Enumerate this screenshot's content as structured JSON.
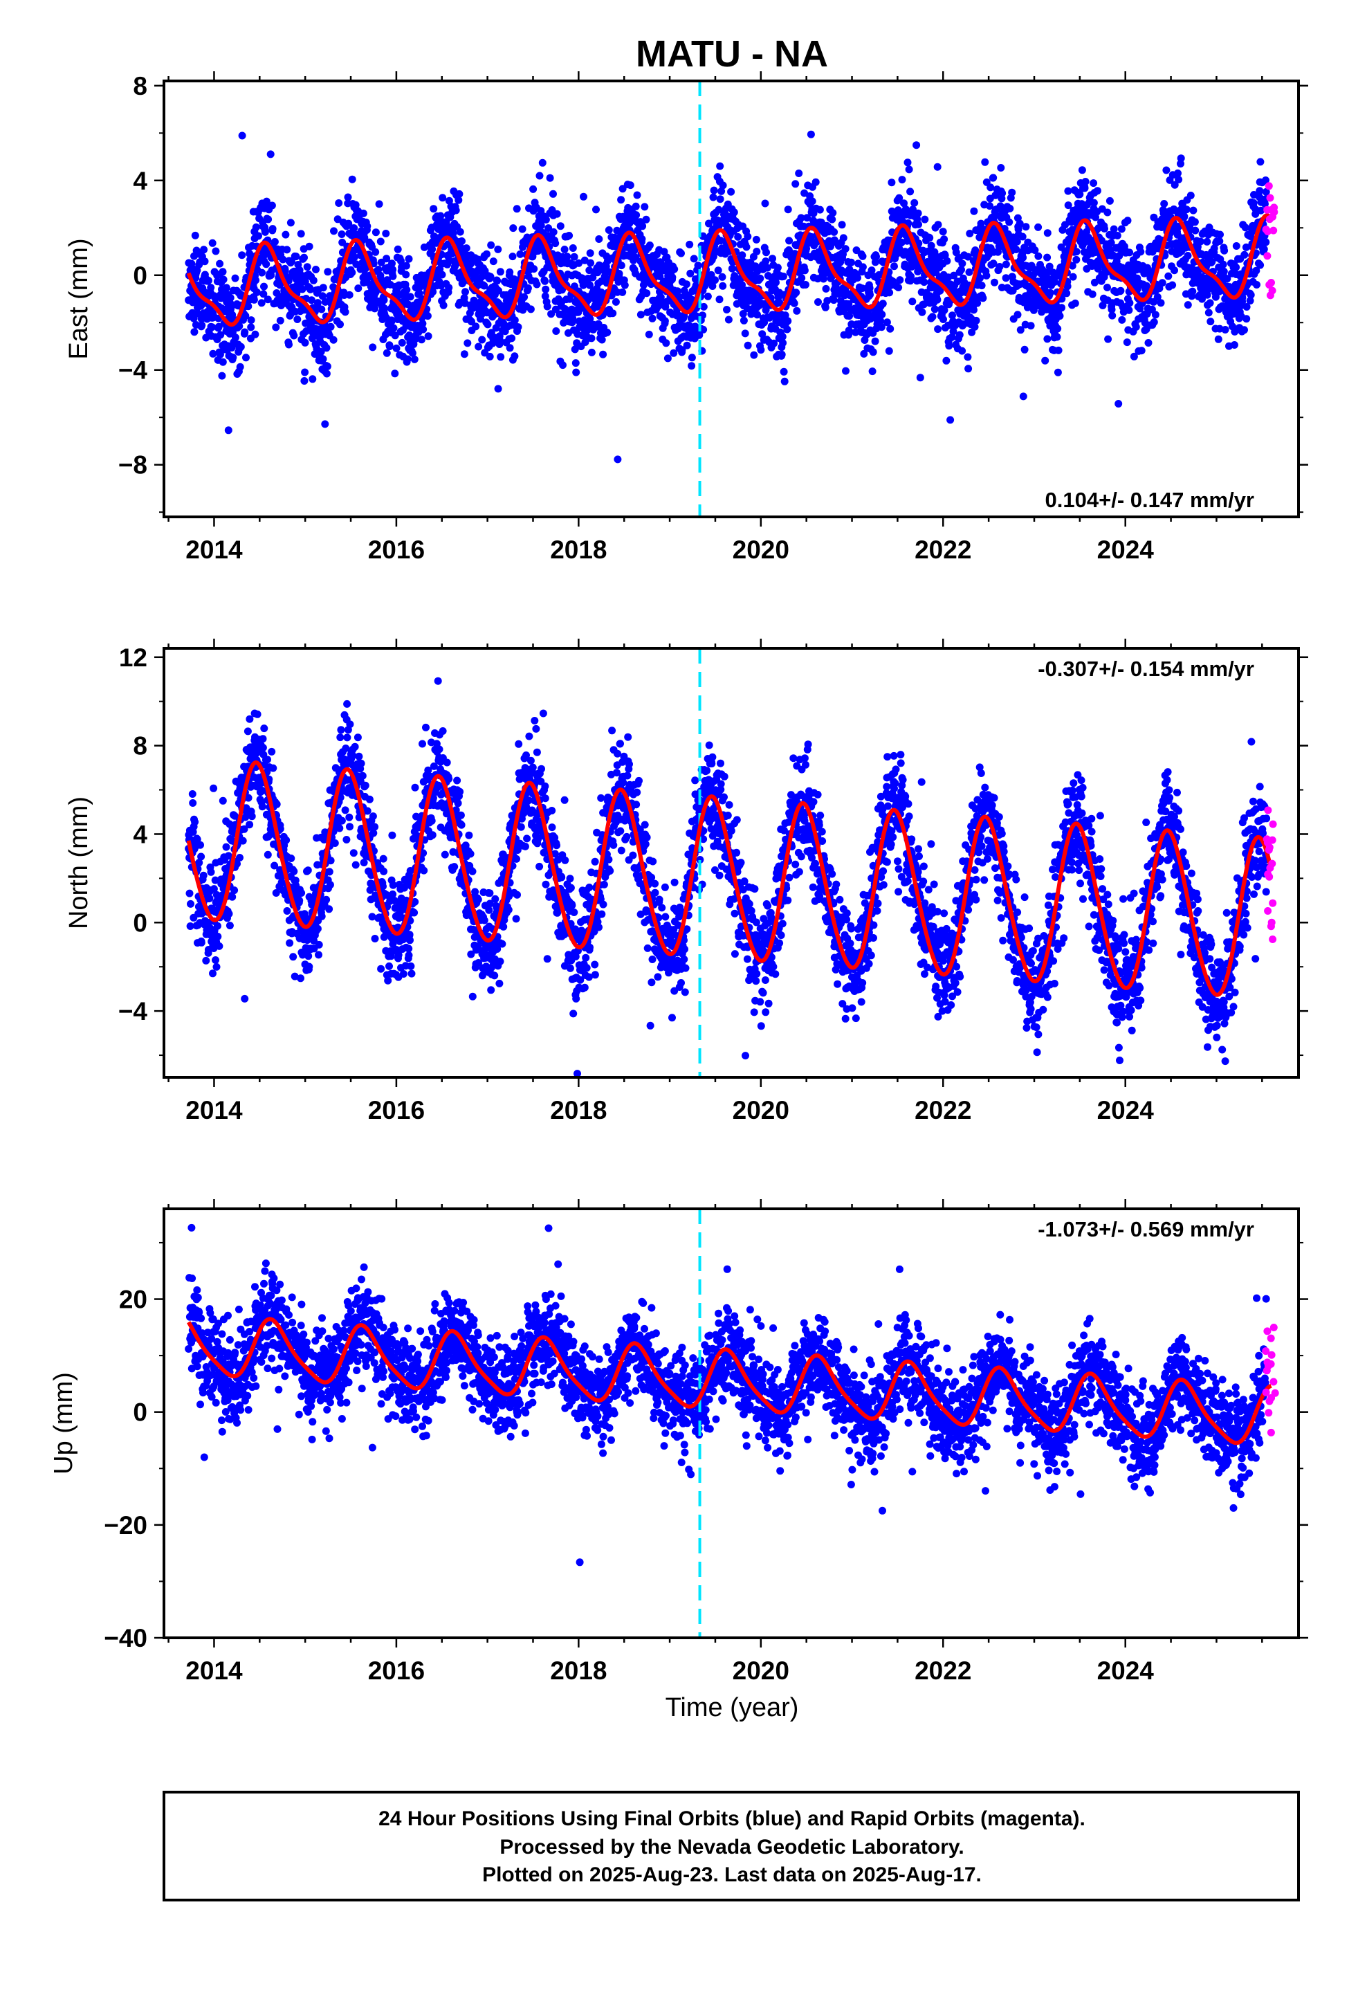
{
  "title": "MATU - NA",
  "xlabel": "Time (year)",
  "footer": {
    "line1": "24 Hour Positions Using Final Orbits (blue) and Rapid Orbits (magenta).",
    "line2": "Processed by the Nevada Geodetic Laboratory.",
    "line3": "Plotted on 2025-Aug-23. Last data on 2025-Aug-17."
  },
  "colors": {
    "final_points": "#0000ff",
    "rapid_points": "#ff00ff",
    "model_line": "#ff0000",
    "equipment_change": "#00e5ff"
  },
  "chart_data": [
    {
      "type": "scatter",
      "panel": "east",
      "ylabel": "East (mm)",
      "rate_label": "0.104+/- 0.147 mm/yr",
      "rate_position": "bottom-right",
      "xlim": [
        2013.45,
        2025.9
      ],
      "ylim": [
        -10.2,
        8.2
      ],
      "x_ticks": [
        "2014",
        "2016",
        "2018",
        "2020",
        "2022",
        "2024"
      ],
      "y_ticks": [
        "8",
        "4",
        "0",
        "−4",
        "−8"
      ],
      "y_tick_values": [
        8,
        4,
        0,
        -4,
        -8
      ],
      "equipment_change_x": 2019.33,
      "model": {
        "offset": 0.0,
        "trend": 0.104,
        "annual_amp": 1.5,
        "annual_peak": 0.6,
        "semiannual_amp": 0.5,
        "start": 2013.72,
        "end": 2025.6
      },
      "scatter_sigma": 1.1,
      "series": [
        {
          "name": "Final Orbits (blue)",
          "x_start": 2013.72,
          "x_end": 2025.55
        },
        {
          "name": "Rapid Orbits (magenta)",
          "x_start": 2025.55,
          "x_end": 2025.63
        },
        {
          "name": "Model fit",
          "x_start": 2013.72,
          "x_end": 2025.6
        }
      ],
      "grid": false
    },
    {
      "type": "scatter",
      "panel": "north",
      "ylabel": "North (mm)",
      "rate_label": "-0.307+/- 0.154 mm/yr",
      "rate_position": "top-right",
      "xlim": [
        2013.45,
        2025.9
      ],
      "ylim": [
        -7.0,
        12.4
      ],
      "x_ticks": [
        "2014",
        "2016",
        "2018",
        "2020",
        "2022",
        "2024"
      ],
      "y_ticks": [
        "12",
        "8",
        "4",
        "0",
        "−4"
      ],
      "y_tick_values": [
        12,
        8,
        4,
        0,
        -4
      ],
      "equipment_change_x": 2019.33,
      "model": {
        "offset": 1.9,
        "trend": -0.307,
        "annual_amp": 3.6,
        "annual_peak": 0.48,
        "semiannual_amp": 0.3,
        "start": 2013.72,
        "end": 2025.6
      },
      "scatter_sigma": 1.2,
      "series": [
        {
          "name": "Final Orbits (blue)",
          "x_start": 2013.72,
          "x_end": 2025.55
        },
        {
          "name": "Rapid Orbits (magenta)",
          "x_start": 2025.55,
          "x_end": 2025.63
        },
        {
          "name": "Model fit",
          "x_start": 2013.72,
          "x_end": 2025.6
        }
      ],
      "grid": false
    },
    {
      "type": "scatter",
      "panel": "up",
      "ylabel": "Up (mm)",
      "rate_label": "-1.073+/- 0.569 mm/yr",
      "rate_position": "top-right",
      "xlim": [
        2013.45,
        2025.9
      ],
      "ylim": [
        -40.0,
        36.0
      ],
      "x_ticks": [
        "2014",
        "2016",
        "2018",
        "2020",
        "2022",
        "2024"
      ],
      "y_ticks": [
        "20",
        "0",
        "−20",
        "−40"
      ],
      "y_tick_values": [
        20,
        0,
        -20,
        -40
      ],
      "equipment_change_x": 2019.33,
      "model": {
        "offset": 5.5,
        "trend": -1.073,
        "annual_amp": 5.0,
        "annual_peak": 0.65,
        "semiannual_amp": 1.0,
        "start": 2013.72,
        "end": 2025.6
      },
      "scatter_sigma": 4.0,
      "series": [
        {
          "name": "Final Orbits (blue)",
          "x_start": 2013.72,
          "x_end": 2025.55
        },
        {
          "name": "Rapid Orbits (magenta)",
          "x_start": 2025.55,
          "x_end": 2025.63
        },
        {
          "name": "Model fit",
          "x_start": 2013.72,
          "x_end": 2025.6
        }
      ],
      "grid": false
    }
  ]
}
